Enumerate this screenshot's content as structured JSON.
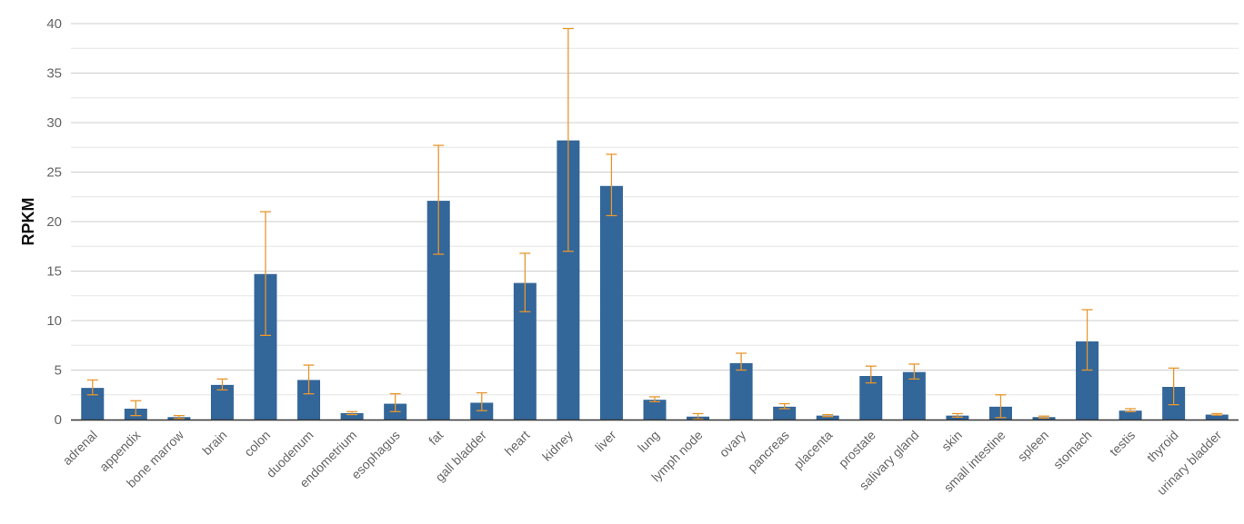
{
  "chart_data": {
    "type": "bar",
    "title": "",
    "xlabel": "",
    "ylabel": "RPKM",
    "ylim": [
      0,
      40
    ],
    "yticks": [
      0,
      5,
      10,
      15,
      20,
      25,
      30,
      35,
      40
    ],
    "grid": true,
    "legend": "none",
    "colors": {
      "bar": "#336699",
      "error_bar": "#E8962E",
      "grid_major": "#cccccc",
      "grid_minor": "#e6e6e6",
      "axis": "#333333"
    },
    "categories": [
      "adrenal",
      "appendix",
      "bone marrow",
      "brain",
      "colon",
      "duodenum",
      "endometrium",
      "esophagus",
      "fat",
      "gall bladder",
      "heart",
      "kidney",
      "liver",
      "lung",
      "lymph node",
      "ovary",
      "pancreas",
      "placenta",
      "prostate",
      "salivary gland",
      "skin",
      "small intestine",
      "spleen",
      "stomach",
      "testis",
      "thyroid",
      "urinary bladder"
    ],
    "values": [
      3.2,
      1.1,
      0.25,
      3.5,
      14.7,
      4.0,
      0.65,
      1.6,
      22.1,
      1.7,
      13.8,
      28.2,
      23.6,
      2.0,
      0.3,
      5.7,
      1.3,
      0.4,
      4.4,
      4.8,
      0.4,
      1.3,
      0.25,
      7.9,
      0.9,
      3.3,
      0.5
    ],
    "error_low": [
      2.5,
      0.4,
      0.1,
      3.0,
      8.5,
      2.6,
      0.5,
      0.8,
      16.7,
      0.9,
      10.9,
      17.0,
      20.6,
      1.8,
      0.05,
      5.0,
      1.1,
      0.3,
      3.7,
      4.1,
      0.25,
      0.2,
      0.15,
      5.0,
      0.8,
      1.5,
      0.45
    ],
    "error_high": [
      4.0,
      1.9,
      0.4,
      4.1,
      21.0,
      5.5,
      0.8,
      2.6,
      27.7,
      2.7,
      16.8,
      39.5,
      26.8,
      2.3,
      0.6,
      6.7,
      1.6,
      0.5,
      5.4,
      5.6,
      0.6,
      2.5,
      0.35,
      11.1,
      1.1,
      5.2,
      0.6
    ]
  }
}
